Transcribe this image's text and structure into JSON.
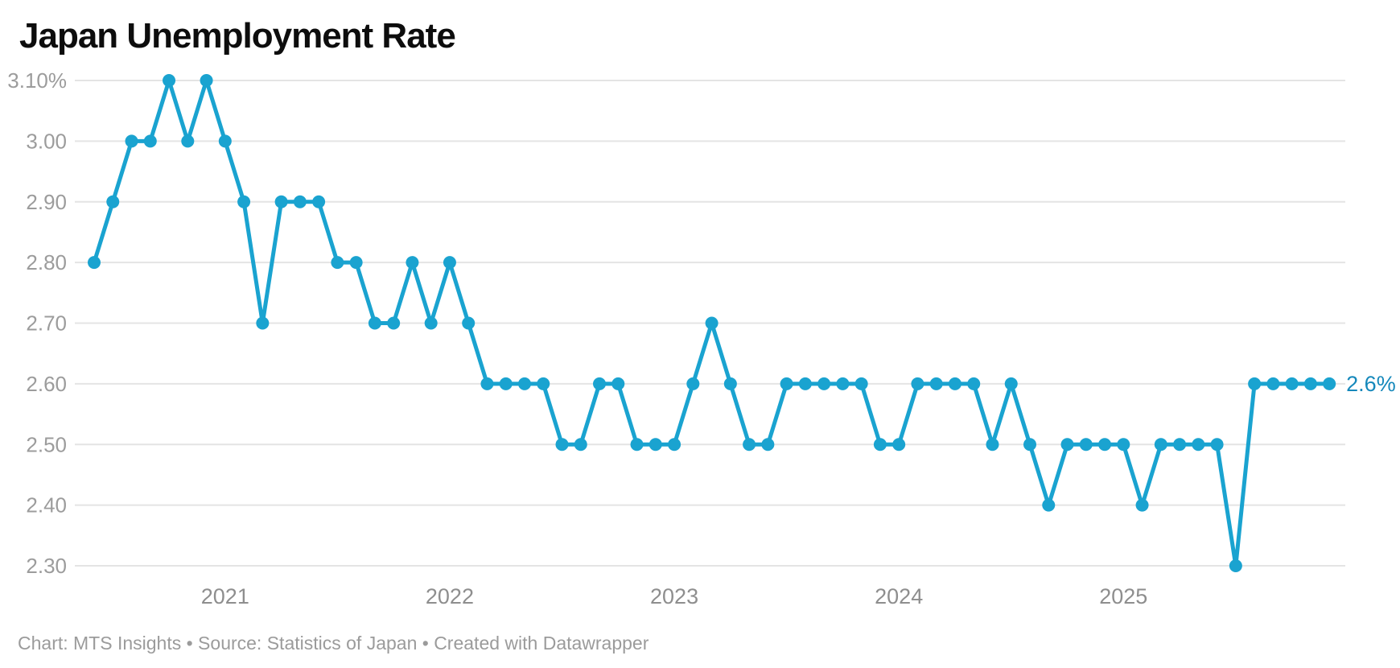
{
  "title": "Japan Unemployment Rate",
  "footer": "Chart: MTS Insights • Source: Statistics of Japan • Created with Datawrapper",
  "colors": {
    "line": "#1aa3d0",
    "point": "#1aa3d0",
    "end_label": "#1588bb",
    "grid": "#e4e4e4",
    "y_axis_text": "#9c9c9c",
    "x_axis_text": "#8e8e8e",
    "title_text": "#0d0d0d",
    "footer_text": "#9b9b9b",
    "background": "#ffffff"
  },
  "chart_data": {
    "type": "line",
    "title": "Japan Unemployment Rate",
    "x_unit": "month",
    "x": [
      "2020-06",
      "2020-07",
      "2020-08",
      "2020-09",
      "2020-10",
      "2020-11",
      "2020-12",
      "2021-01",
      "2021-02",
      "2021-03",
      "2021-04",
      "2021-05",
      "2021-06",
      "2021-07",
      "2021-08",
      "2021-09",
      "2021-10",
      "2021-11",
      "2021-12",
      "2022-01",
      "2022-02",
      "2022-03",
      "2022-04",
      "2022-05",
      "2022-06",
      "2022-07",
      "2022-08",
      "2022-09",
      "2022-10",
      "2022-11",
      "2022-12",
      "2023-01",
      "2023-02",
      "2023-03",
      "2023-04",
      "2023-05",
      "2023-06",
      "2023-07",
      "2023-08",
      "2023-09",
      "2023-10",
      "2023-11",
      "2023-12",
      "2024-01",
      "2024-02",
      "2024-03",
      "2024-04",
      "2024-05",
      "2024-06",
      "2024-07",
      "2024-08",
      "2024-09",
      "2024-10",
      "2024-11",
      "2024-12",
      "2025-01",
      "2025-02",
      "2025-03",
      "2025-04",
      "2025-05",
      "2025-06",
      "2025-07",
      "2025-08",
      "2025-09",
      "2025-10",
      "2025-11",
      "2025-12"
    ],
    "values": [
      2.8,
      2.9,
      3.0,
      3.0,
      3.1,
      3.0,
      3.1,
      3.0,
      2.9,
      2.7,
      2.9,
      2.9,
      2.9,
      2.8,
      2.8,
      2.7,
      2.7,
      2.8,
      2.7,
      2.8,
      2.7,
      2.6,
      2.6,
      2.6,
      2.6,
      2.5,
      2.5,
      2.6,
      2.6,
      2.5,
      2.5,
      2.5,
      2.6,
      2.7,
      2.6,
      2.5,
      2.5,
      2.6,
      2.6,
      2.6,
      2.6,
      2.6,
      2.5,
      2.5,
      2.6,
      2.6,
      2.6,
      2.6,
      2.5,
      2.6,
      2.5,
      2.4,
      2.5,
      2.5,
      2.5,
      2.5,
      2.4,
      2.5,
      2.5,
      2.5,
      2.5,
      2.3,
      2.6,
      2.6,
      2.6,
      2.6,
      2.6
    ],
    "yticks": [
      3.1,
      3.0,
      2.9,
      2.8,
      2.7,
      2.6,
      2.5,
      2.4,
      2.3
    ],
    "ytick_labels": [
      "3.10%",
      "3.00",
      "2.90",
      "2.80",
      "2.70",
      "2.60",
      "2.50",
      "2.40",
      "2.30"
    ],
    "xtick_labels": [
      "2021",
      "2022",
      "2023",
      "2024",
      "2025"
    ],
    "ylim": [
      2.3,
      3.1
    ],
    "grid": "horizontal",
    "legend": "none",
    "point_markers": true,
    "end_label": "2.6%"
  }
}
